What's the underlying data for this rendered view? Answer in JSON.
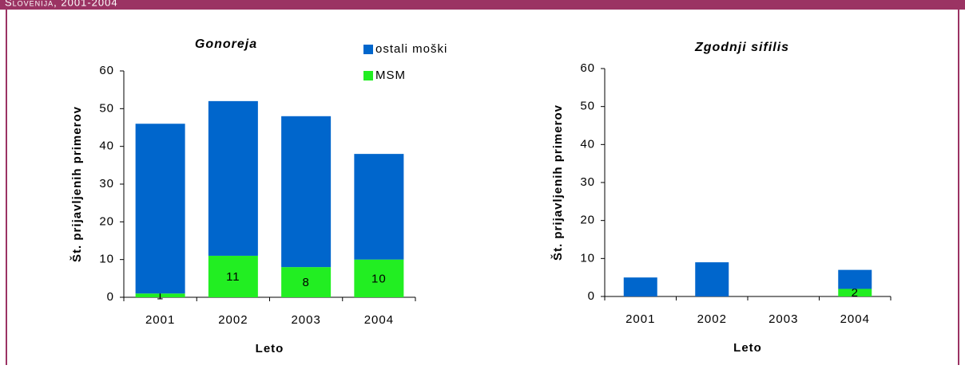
{
  "header": {
    "title": "Slovenija, 2001-2004"
  },
  "chart_data": [
    {
      "type": "bar",
      "stacked": true,
      "title": "Gonoreja",
      "categories": [
        "2001",
        "2002",
        "2003",
        "2004"
      ],
      "series": [
        {
          "name": "ostali moški",
          "color": "#0066cc",
          "values": [
            45,
            41,
            40,
            28
          ]
        },
        {
          "name": "MSM",
          "color": "#22ee22",
          "values": [
            1,
            11,
            8,
            10
          ]
        }
      ],
      "x_label": "Leto",
      "y_label": "Št. prijavljenih primerov",
      "ylim": [
        0,
        60
      ],
      "yticks": [
        0,
        10,
        20,
        30,
        40,
        50,
        60
      ],
      "legend": true
    },
    {
      "type": "bar",
      "stacked": true,
      "title": "Zgodnji sifilis",
      "categories": [
        "2001",
        "2002",
        "2003",
        "2004"
      ],
      "series": [
        {
          "name": "ostali moški",
          "color": "#0066cc",
          "values": [
            5,
            9,
            0,
            5
          ]
        },
        {
          "name": "MSM",
          "color": "#22ee22",
          "values": [
            0,
            0,
            0,
            2
          ]
        }
      ],
      "x_label": "Leto",
      "y_label": "Št. prijavljenih primerov",
      "ylim": [
        0,
        60
      ],
      "yticks": [
        0,
        10,
        20,
        30,
        40,
        50,
        60
      ],
      "legend": false
    }
  ]
}
